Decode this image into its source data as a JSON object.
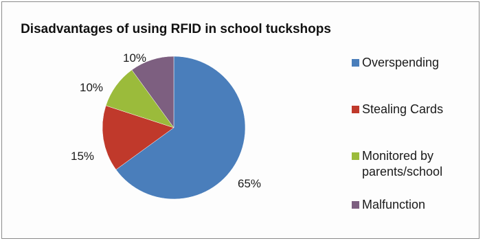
{
  "chart_data": {
    "type": "pie",
    "title": "Disadvantages of using RFID in school tuckshops",
    "legend_position": "right",
    "slices": [
      {
        "label": "Overspending",
        "legend_label": "Overspending",
        "value": 65,
        "display": "65%",
        "color": "#4a7ebb"
      },
      {
        "label": "Stealing Cards",
        "legend_label": "Stealing Cards",
        "value": 15,
        "display": "15%",
        "color": "#c0392b"
      },
      {
        "label": "Monitored by parents/school",
        "legend_label": "Monitored by\nparents/school",
        "value": 10,
        "display": "10%",
        "color": "#9bbb3b"
      },
      {
        "label": "Malfunction",
        "legend_label": "Malfunction",
        "value": 10,
        "display": "10%",
        "color": "#7d5f80"
      }
    ]
  }
}
